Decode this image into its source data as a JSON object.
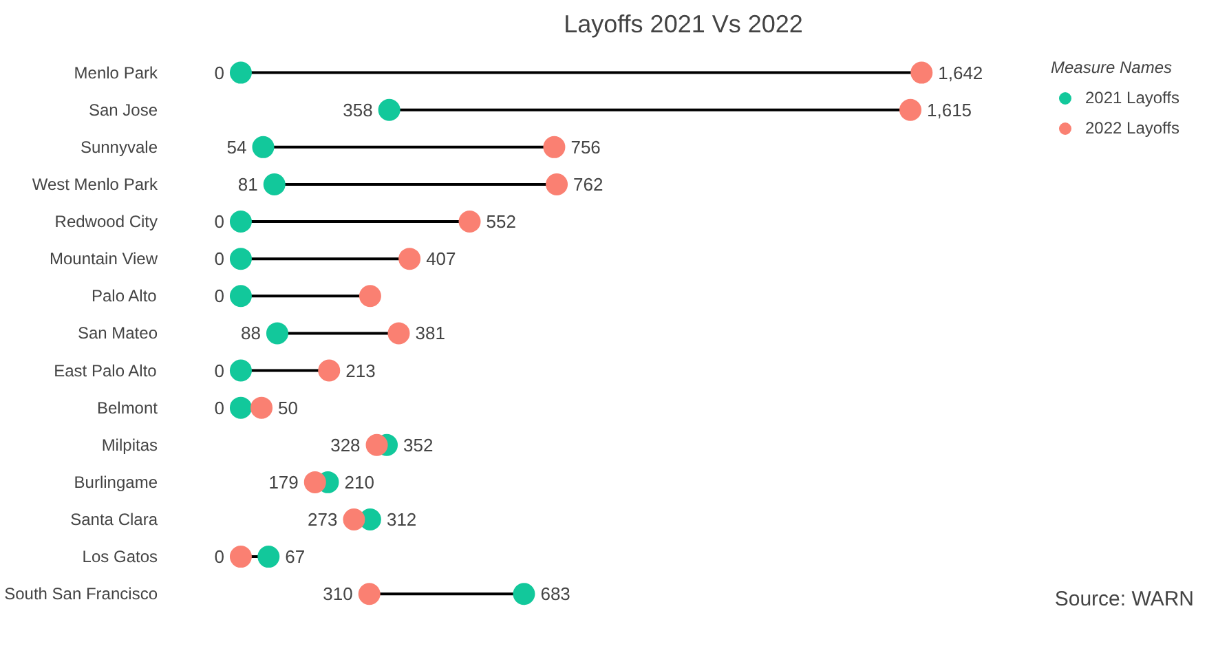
{
  "chart_data": {
    "type": "lollipop",
    "title": "Layoffs 2021 Vs 2022",
    "legend_title": "Measure Names",
    "orientation": "horizontal",
    "legend": "top right",
    "marker": "circle",
    "data_labels": true,
    "categories": [
      "Menlo Park",
      "San Jose",
      "Sunnyvale",
      "West Menlo Park",
      "Redwood City",
      "Mountain View",
      "Palo Alto",
      "San Mateo",
      "East Palo Alto",
      "Belmont",
      "Milpitas",
      "Burlingame",
      "Santa Clara",
      "Los Gatos",
      "South San Francisco"
    ],
    "series": [
      {
        "name": "2021 Layoffs",
        "color": "#12c89b",
        "values": [
          0,
          358,
          54,
          81,
          0,
          0,
          0,
          88,
          0,
          0,
          352,
          210,
          312,
          67,
          683
        ],
        "value_labels": [
          "0",
          "358",
          "54",
          "81",
          "0",
          "0",
          "0",
          "88",
          "0",
          "0",
          "352",
          "210",
          "312",
          "67",
          "683"
        ]
      },
      {
        "name": "2022 Layoffs",
        "color": "#fa8072",
        "values": [
          1642,
          1615,
          756,
          762,
          552,
          407,
          312,
          381,
          213,
          50,
          328,
          179,
          273,
          0,
          310
        ],
        "value_labels": [
          "1,642",
          "1,615",
          "756",
          "762",
          "552",
          "407",
          null,
          "381",
          "213",
          "50",
          "328",
          "179",
          "273",
          "0",
          "310"
        ]
      }
    ],
    "annotations": [
      "Source: WARN"
    ]
  }
}
